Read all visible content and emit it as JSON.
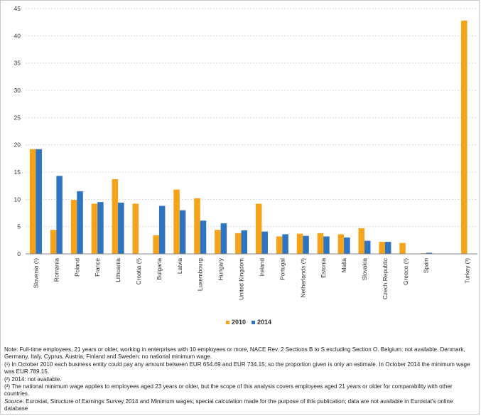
{
  "chart_data": {
    "type": "bar",
    "title": "",
    "xlabel": "",
    "ylabel": "",
    "ylim": [
      0,
      45
    ],
    "yticks": [
      0,
      5,
      10,
      15,
      20,
      25,
      30,
      35,
      40,
      45
    ],
    "grid": true,
    "legend_position": "bottom-center",
    "categories": [
      "Slovenia (¹)",
      "Romania",
      "Poland",
      "France",
      "Lithuania",
      "Croatia (²)",
      "Bulgaria",
      "Latvia",
      "Luxembourg",
      "Hungary",
      "United Kingdom",
      "Ireland",
      "Portugal",
      "Netherlands (³)",
      "Estonia",
      "Malta",
      "Slovakia",
      "Czech Republic",
      "Greece (²)",
      "Spain",
      "",
      "Turkey (³)"
    ],
    "series": [
      {
        "name": "2010",
        "color": "#f5a31a",
        "values": [
          19.2,
          4.4,
          9.9,
          9.2,
          13.7,
          9.2,
          3.4,
          11.8,
          10.2,
          4.4,
          3.8,
          9.2,
          3.2,
          3.7,
          3.8,
          3.6,
          4.7,
          2.2,
          2.0,
          0.1,
          null,
          42.8
        ]
      },
      {
        "name": "2014",
        "color": "#2e74c0",
        "values": [
          19.2,
          14.3,
          11.5,
          9.5,
          9.4,
          null,
          8.8,
          8.0,
          6.1,
          5.6,
          4.3,
          4.1,
          3.6,
          3.3,
          3.2,
          3.0,
          2.4,
          2.2,
          null,
          0.2,
          null,
          null
        ]
      }
    ]
  },
  "notes": {
    "note": "Note: Full-time employees, 21 years or older, working in enterprises with 10 employees or more, NACE Rev. 2 Sections B to S excluding Section O. Belgium: not available. Denmark, Germany, Italy, Cyprus, Austria, Finland and Sweden: no national minimum wage.",
    "fn1": "(¹) In October 2010 each business entity could pay any amount between EUR 654.69 and EUR 734.15; so the proportion given is only an estimate. In October 2014 the minimum wage was EUR 789.15.",
    "fn2": "(²) 2014: not available.",
    "fn3": "(³) The national minimum wage applies to employees aged 23 years or older, but the scope of this analysis covers employees aged 21 years or older for comparability with other countries.",
    "source_label": "Source:",
    "source_text": " Eurostat, Structure of Earnings Survey 2014 and Minimum wages; special calculation made for the purpose of this publication; data are not available in Eurostat's online database"
  }
}
